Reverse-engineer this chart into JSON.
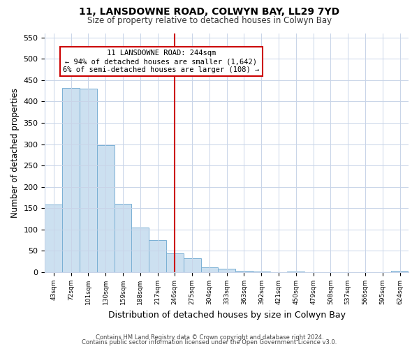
{
  "title": "11, LANSDOWNE ROAD, COLWYN BAY, LL29 7YD",
  "subtitle": "Size of property relative to detached houses in Colwyn Bay",
  "xlabel": "Distribution of detached houses by size in Colwyn Bay",
  "ylabel": "Number of detached properties",
  "bar_color": "#cce0f0",
  "bar_edge_color": "#7ab0d4",
  "categories": [
    "43sqm",
    "72sqm",
    "101sqm",
    "130sqm",
    "159sqm",
    "188sqm",
    "217sqm",
    "246sqm",
    "275sqm",
    "304sqm",
    "333sqm",
    "363sqm",
    "392sqm",
    "421sqm",
    "450sqm",
    "479sqm",
    "508sqm",
    "537sqm",
    "566sqm",
    "595sqm",
    "624sqm"
  ],
  "values": [
    158,
    432,
    430,
    298,
    161,
    105,
    75,
    45,
    33,
    12,
    8,
    4,
    2,
    0,
    2,
    0,
    0,
    0,
    0,
    0,
    3
  ],
  "vline_color": "#cc0000",
  "annotation_title": "11 LANSDOWNE ROAD: 244sqm",
  "annotation_line1": "← 94% of detached houses are smaller (1,642)",
  "annotation_line2": "6% of semi-detached houses are larger (108) →",
  "ylim": [
    0,
    560
  ],
  "yticks": [
    0,
    50,
    100,
    150,
    200,
    250,
    300,
    350,
    400,
    450,
    500,
    550
  ],
  "footnote1": "Contains HM Land Registry data © Crown copyright and database right 2024.",
  "footnote2": "Contains public sector information licensed under the Open Government Licence v3.0.",
  "background_color": "#ffffff",
  "grid_color": "#c8d4e8"
}
